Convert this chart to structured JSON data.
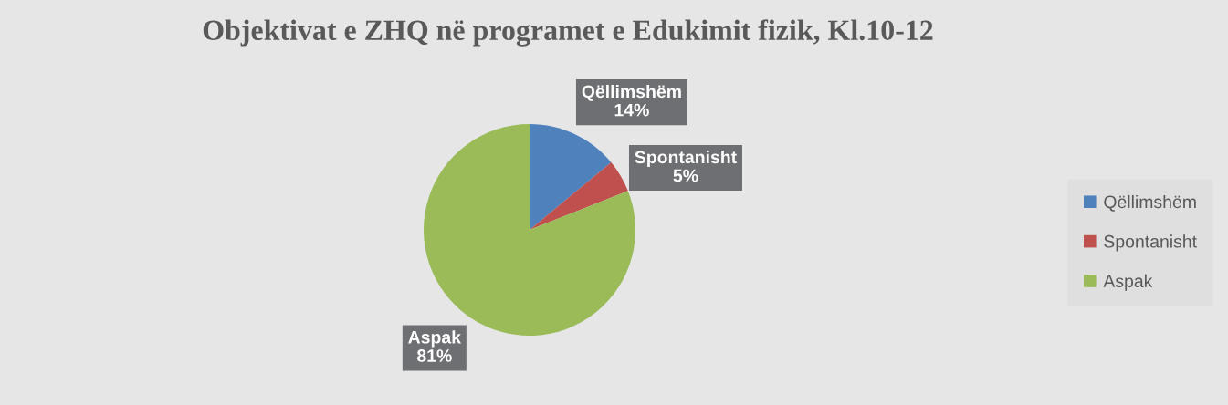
{
  "chart_data": {
    "type": "pie",
    "title": "Objektivat e ZHQ në programet e Edukimit fizik, Kl.10-12",
    "categories": [
      "Qëllimshëm",
      "Spontanisht",
      "Aspak"
    ],
    "values": [
      14,
      5,
      81
    ],
    "colors": [
      "#4f81bd",
      "#c0504d",
      "#9bbb59"
    ],
    "value_labels": [
      "14%",
      "5%",
      "81%"
    ],
    "legend": "right"
  }
}
